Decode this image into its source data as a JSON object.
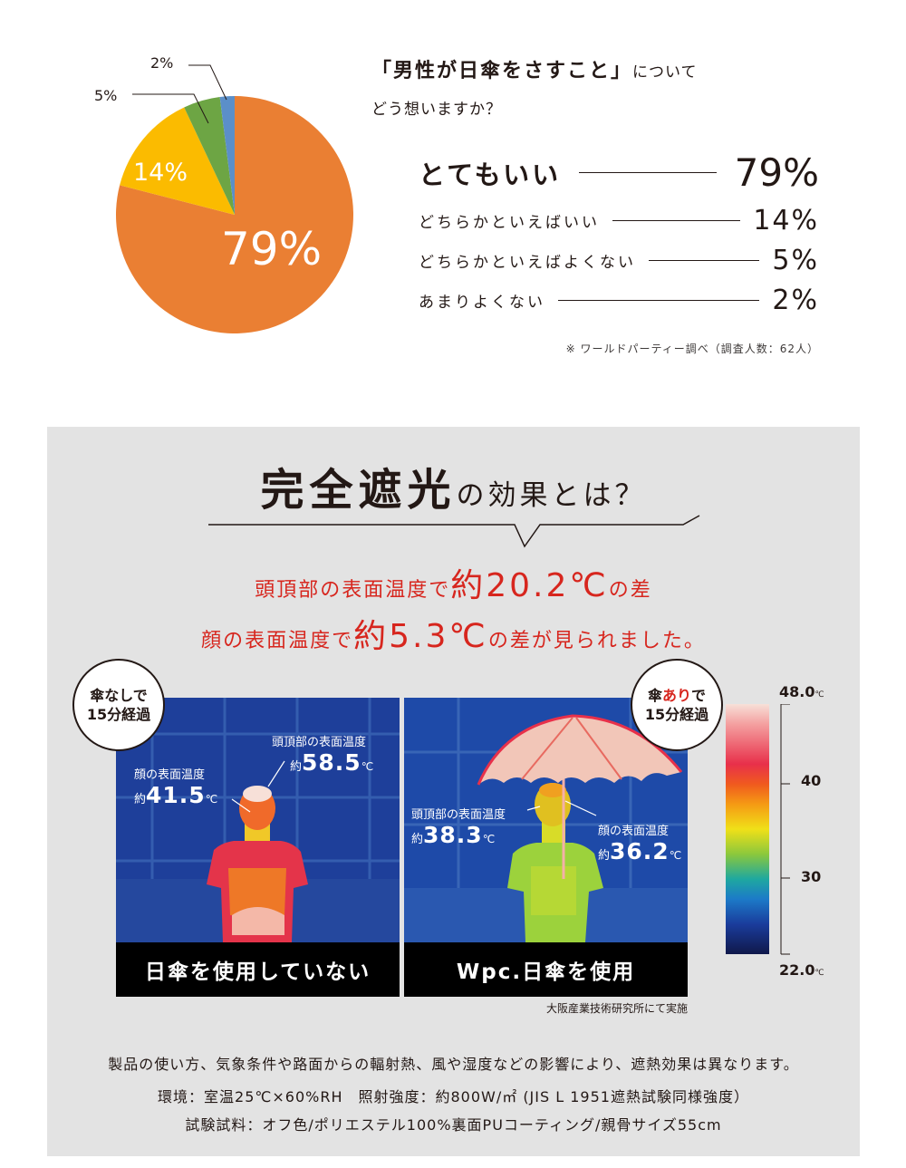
{
  "survey": {
    "pie": {
      "values": [
        79,
        14,
        5,
        2
      ],
      "colors": [
        "#ea7f33",
        "#fbbb00",
        "#6da544",
        "#5b8fc9"
      ],
      "labels": [
        "79%",
        "14%",
        "5%",
        "2%"
      ]
    },
    "question_quote": "「男性が日傘をさすこと」",
    "question_suffix": "について",
    "question_line2": "どう想いますか？",
    "answers": [
      {
        "label": "とてもいい",
        "value": "79%"
      },
      {
        "label": "どちらかといえばいい",
        "value": "14%"
      },
      {
        "label": "どちらかといえばよくない",
        "value": "5%"
      },
      {
        "label": "あまりよくない",
        "value": "2%"
      }
    ],
    "note": "※ ワールドパーティー調べ（調査人数：62人）"
  },
  "effect": {
    "headline_big": "完全遮光",
    "headline_small": "の効果とは？",
    "red_line1_pre": "頭頂部の表面温度で",
    "red_line1_num": "約20.2℃",
    "red_line1_post": "の差",
    "red_line2_pre": "顔の表面温度で",
    "red_line2_num": "約5.3℃",
    "red_line2_post": "の差が見られました。",
    "accent_color": "#d7261e",
    "without": {
      "badge_line1": "傘なしで",
      "badge_line2": "15分経過",
      "head_label": "頭頂部の表面温度",
      "head_value": "58.5",
      "face_label": "顔の表面温度",
      "face_value": "41.5",
      "caption": "日傘を使用していない"
    },
    "with": {
      "badge_line1_a": "傘",
      "badge_line1_b": "あり",
      "badge_line1_c": "で",
      "badge_line2": "15分経過",
      "head_label": "頭頂部の表面温度",
      "head_value": "38.3",
      "face_label": "顔の表面温度",
      "face_value": "36.2",
      "caption": "Wpc.日傘を使用"
    },
    "value_prefix": "約",
    "value_unit": "℃",
    "scale": {
      "max": "48.0",
      "mid_high": "40",
      "mid_low": "30",
      "min": "22.0",
      "unit": "℃"
    },
    "source": "大阪産業技術研究所にて実施",
    "footnote1": "製品の使い方、気象条件や路面からの輻射熱、風や湿度などの影響により、遮熱効果は異なります。",
    "footnote2": "環境：室温25℃×60%RH　照射強度：約800W/㎡ (JIS L 1951遮熱試験同様強度）",
    "footnote3": "試験試料：オフ色/ポリエステル100%裏面PUコーティング/親骨サイズ55cm"
  }
}
